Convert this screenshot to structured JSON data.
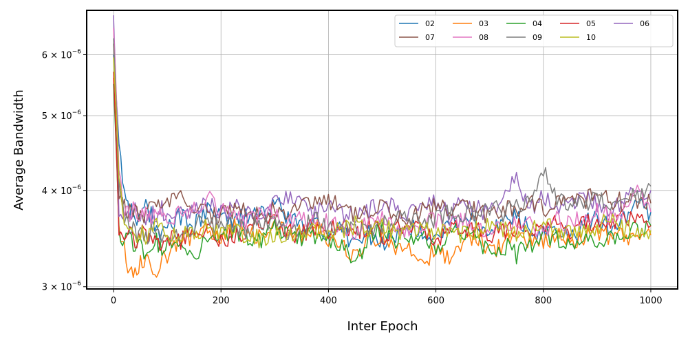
{
  "chart_data": {
    "type": "line",
    "xlabel": "Inter Epoch",
    "ylabel": "Average Bandwidth",
    "xlim": [
      -50,
      1050
    ],
    "ylim": [
      2.98e-06,
      6.85e-06
    ],
    "y_scale": "log",
    "grid": true,
    "legend_position": "top-right",
    "legend_columns": 5,
    "x_ticks": [
      {
        "value": 0,
        "label": "0"
      },
      {
        "value": 200,
        "label": "200"
      },
      {
        "value": 400,
        "label": "400"
      },
      {
        "value": 600,
        "label": "600"
      },
      {
        "value": 800,
        "label": "800"
      },
      {
        "value": 1000,
        "label": "1000"
      }
    ],
    "y_ticks": [
      {
        "value": 3e-06,
        "label": "3 × 10",
        "exp": "−6"
      },
      {
        "value": 4e-06,
        "label": "4 × 10",
        "exp": "−6"
      },
      {
        "value": 5e-06,
        "label": "5 × 10",
        "exp": "−6"
      },
      {
        "value": 6e-06,
        "label": "6 × 10",
        "exp": "−6"
      }
    ],
    "x": [
      0,
      10,
      20,
      30,
      40,
      50,
      60,
      70,
      80,
      90,
      100,
      125,
      150,
      175,
      200,
      225,
      250,
      275,
      300,
      325,
      350,
      375,
      400,
      425,
      450,
      475,
      500,
      525,
      550,
      575,
      600,
      625,
      650,
      675,
      700,
      725,
      750,
      775,
      800,
      825,
      850,
      875,
      900,
      925,
      950,
      975,
      1000
    ],
    "series": [
      {
        "name": "02",
        "color": "#1f77b4",
        "values": [
          6e-06,
          4.6e-06,
          4e-06,
          3.75e-06,
          3.7e-06,
          3.65e-06,
          3.8e-06,
          3.7e-06,
          3.6e-06,
          3.5e-06,
          3.6e-06,
          3.7e-06,
          3.6e-06,
          3.75e-06,
          3.7e-06,
          3.65e-06,
          3.7e-06,
          3.75e-06,
          3.85e-06,
          3.7e-06,
          3.65e-06,
          3.6e-06,
          3.5e-06,
          3.55e-06,
          3.4e-06,
          3.5e-06,
          3.4e-06,
          3.5e-06,
          3.6e-06,
          3.55e-06,
          3.45e-06,
          3.6e-06,
          3.7e-06,
          3.6e-06,
          3.5e-06,
          3.65e-06,
          3.7e-06,
          3.55e-06,
          3.5e-06,
          3.6e-06,
          3.45e-06,
          3.6e-06,
          3.7e-06,
          3.6e-06,
          3.7e-06,
          3.85e-06,
          3.75e-06
        ]
      },
      {
        "name": "03",
        "color": "#ff7f0e",
        "values": [
          5.6e-06,
          3.6e-06,
          3.35e-06,
          3.15e-06,
          3.1e-06,
          3.2e-06,
          3.3e-06,
          3.2e-06,
          3.1e-06,
          3.25e-06,
          3.3e-06,
          3.45e-06,
          3.5e-06,
          3.55e-06,
          3.5e-06,
          3.6e-06,
          3.55e-06,
          3.5e-06,
          3.6e-06,
          3.55e-06,
          3.5e-06,
          3.6e-06,
          3.45e-06,
          3.4e-06,
          3.25e-06,
          3.45e-06,
          3.5e-06,
          3.3e-06,
          3.4e-06,
          3.2e-06,
          3.35e-06,
          3.25e-06,
          3.45e-06,
          3.5e-06,
          3.35e-06,
          3.4e-06,
          3.5e-06,
          3.45e-06,
          3.4e-06,
          3.5e-06,
          3.45e-06,
          3.5e-06,
          3.55e-06,
          3.45e-06,
          3.5e-06,
          3.4e-06,
          3.5e-06
        ]
      },
      {
        "name": "04",
        "color": "#2ca02c",
        "values": [
          5.5e-06,
          3.55e-06,
          3.45e-06,
          3.5e-06,
          3.4e-06,
          3.45e-06,
          3.3e-06,
          3.4e-06,
          3.45e-06,
          3.35e-06,
          3.4e-06,
          3.35e-06,
          3.3e-06,
          3.45e-06,
          3.5e-06,
          3.55e-06,
          3.5e-06,
          3.45e-06,
          3.6e-06,
          3.5e-06,
          3.45e-06,
          3.5e-06,
          3.45e-06,
          3.4e-06,
          3.2e-06,
          3.5e-06,
          3.55e-06,
          3.45e-06,
          3.5e-06,
          3.5e-06,
          3.4e-06,
          3.5e-06,
          3.55e-06,
          3.45e-06,
          3.35e-06,
          3.4e-06,
          3.3e-06,
          3.4e-06,
          3.5e-06,
          3.45e-06,
          3.35e-06,
          3.45e-06,
          3.4e-06,
          3.45e-06,
          3.5e-06,
          3.55e-06,
          3.6e-06
        ]
      },
      {
        "name": "05",
        "color": "#d62728",
        "values": [
          5.7e-06,
          3.5e-06,
          3.55e-06,
          3.5e-06,
          3.45e-06,
          3.5e-06,
          3.55e-06,
          3.45e-06,
          3.5e-06,
          3.4e-06,
          3.5e-06,
          3.45e-06,
          3.55e-06,
          3.6e-06,
          3.45e-06,
          3.5e-06,
          3.55e-06,
          3.6e-06,
          3.65e-06,
          3.55e-06,
          3.5e-06,
          3.6e-06,
          3.55e-06,
          3.6e-06,
          3.55e-06,
          3.6e-06,
          3.5e-06,
          3.55e-06,
          3.6e-06,
          3.55e-06,
          3.45e-06,
          3.55e-06,
          3.6e-06,
          3.55e-06,
          3.5e-06,
          3.55e-06,
          3.6e-06,
          3.55e-06,
          3.6e-06,
          3.65e-06,
          3.55e-06,
          3.6e-06,
          3.65e-06,
          3.6e-06,
          3.7e-06,
          3.65e-06,
          3.6e-06
        ]
      },
      {
        "name": "06",
        "color": "#9467bd",
        "values": [
          6.75e-06,
          3.7e-06,
          3.8e-06,
          3.7e-06,
          3.75e-06,
          3.7e-06,
          3.65e-06,
          3.7e-06,
          3.75e-06,
          3.8e-06,
          3.7e-06,
          3.75e-06,
          3.8e-06,
          3.85e-06,
          3.75e-06,
          3.8e-06,
          3.75e-06,
          3.7e-06,
          3.85e-06,
          3.95e-06,
          3.8e-06,
          3.75e-06,
          3.8e-06,
          3.75e-06,
          3.7e-06,
          3.75e-06,
          3.85e-06,
          3.8e-06,
          3.75e-06,
          3.8e-06,
          3.85e-06,
          3.7e-06,
          3.85e-06,
          3.8e-06,
          3.75e-06,
          3.9e-06,
          4.15e-06,
          3.8e-06,
          3.9e-06,
          3.8e-06,
          3.85e-06,
          3.9e-06,
          3.85e-06,
          3.8e-06,
          3.9e-06,
          3.95e-06,
          4e-06
        ]
      },
      {
        "name": "07",
        "color": "#8c564b",
        "values": [
          6.2e-06,
          3.9e-06,
          3.85e-06,
          3.75e-06,
          3.8e-06,
          3.7e-06,
          3.75e-06,
          3.8e-06,
          3.85e-06,
          3.75e-06,
          3.8e-06,
          3.95e-06,
          3.8e-06,
          3.75e-06,
          3.7e-06,
          3.8e-06,
          3.75e-06,
          3.7e-06,
          3.8e-06,
          3.75e-06,
          3.8e-06,
          3.85e-06,
          3.9e-06,
          3.8e-06,
          3.75e-06,
          3.7e-06,
          3.8e-06,
          3.75e-06,
          3.7e-06,
          3.75e-06,
          3.8e-06,
          3.75e-06,
          3.8e-06,
          3.75e-06,
          3.7e-06,
          3.75e-06,
          3.8e-06,
          3.85e-06,
          3.8e-06,
          3.85e-06,
          3.9e-06,
          3.85e-06,
          4.05e-06,
          3.9e-06,
          3.85e-06,
          3.9e-06,
          3.85e-06
        ]
      },
      {
        "name": "08",
        "color": "#e377c2",
        "values": [
          6.5e-06,
          4.25e-06,
          3.8e-06,
          3.75e-06,
          3.8e-06,
          3.7e-06,
          3.75e-06,
          3.7e-06,
          3.8e-06,
          3.75e-06,
          3.7e-06,
          3.75e-06,
          3.8e-06,
          3.9e-06,
          3.75e-06,
          3.7e-06,
          3.65e-06,
          3.7e-06,
          3.75e-06,
          3.65e-06,
          3.7e-06,
          3.6e-06,
          3.65e-06,
          3.6e-06,
          3.55e-06,
          3.6e-06,
          3.65e-06,
          3.6e-06,
          3.55e-06,
          3.6e-06,
          3.65e-06,
          3.6e-06,
          3.65e-06,
          3.6e-06,
          3.55e-06,
          3.6e-06,
          3.65e-06,
          3.6e-06,
          3.55e-06,
          3.65e-06,
          3.6e-06,
          3.7e-06,
          3.75e-06,
          3.7e-06,
          3.8e-06,
          4e-06,
          3.75e-06
        ]
      },
      {
        "name": "09",
        "color": "#7f7f7f",
        "values": [
          6.3e-06,
          4.1e-06,
          3.7e-06,
          3.6e-06,
          3.55e-06,
          3.5e-06,
          3.45e-06,
          3.55e-06,
          3.5e-06,
          3.45e-06,
          3.5e-06,
          3.55e-06,
          3.6e-06,
          3.65e-06,
          3.55e-06,
          3.6e-06,
          3.55e-06,
          3.65e-06,
          3.6e-06,
          3.55e-06,
          3.6e-06,
          3.65e-06,
          3.6e-06,
          3.55e-06,
          3.6e-06,
          3.55e-06,
          3.6e-06,
          3.65e-06,
          3.7e-06,
          3.6e-06,
          3.7e-06,
          3.75e-06,
          3.7e-06,
          3.75e-06,
          3.8e-06,
          3.75e-06,
          3.8e-06,
          3.85e-06,
          4.25e-06,
          3.9e-06,
          3.85e-06,
          3.8e-06,
          3.9e-06,
          3.85e-06,
          3.95e-06,
          3.9e-06,
          4.05e-06
        ]
      },
      {
        "name": "10",
        "color": "#bcbd22",
        "values": [
          5.95e-06,
          4.15e-06,
          3.6e-06,
          3.55e-06,
          3.5e-06,
          3.55e-06,
          3.45e-06,
          3.5e-06,
          3.6e-06,
          3.55e-06,
          3.45e-06,
          3.5e-06,
          3.55e-06,
          3.6e-06,
          3.5e-06,
          3.55e-06,
          3.5e-06,
          3.45e-06,
          3.5e-06,
          3.55e-06,
          3.5e-06,
          3.55e-06,
          3.5e-06,
          3.55e-06,
          3.6e-06,
          3.55e-06,
          3.6e-06,
          3.5e-06,
          3.55e-06,
          3.6e-06,
          3.5e-06,
          3.55e-06,
          3.5e-06,
          3.55e-06,
          3.6e-06,
          3.55e-06,
          3.5e-06,
          3.55e-06,
          3.6e-06,
          3.55e-06,
          3.5e-06,
          3.55e-06,
          3.6e-06,
          3.65e-06,
          3.55e-06,
          3.6e-06,
          3.55e-06
        ]
      }
    ]
  }
}
